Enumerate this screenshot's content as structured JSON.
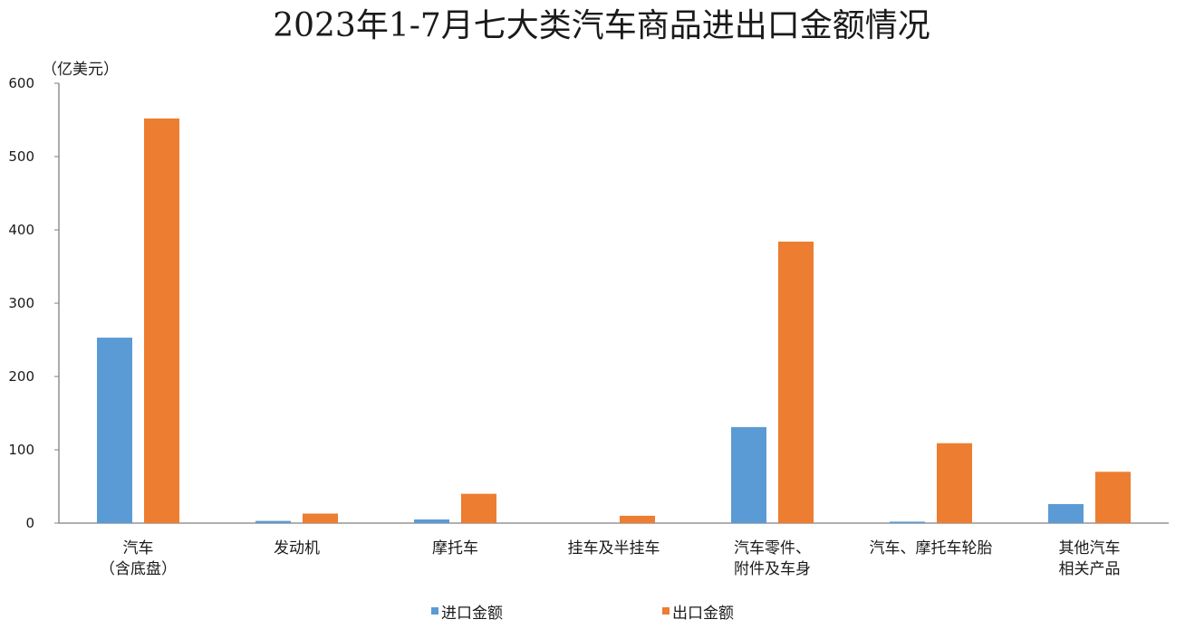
{
  "chart_data": {
    "type": "bar",
    "title": "2023年1-7月七大类汽车商品进出口金额情况",
    "unit_label": "（亿美元）",
    "ylim": [
      0,
      600
    ],
    "yticks": [
      "0",
      "100",
      "200",
      "300",
      "400",
      "500",
      "600"
    ],
    "categories": [
      [
        "汽车",
        "（含底盘）"
      ],
      [
        "发动机"
      ],
      [
        "摩托车"
      ],
      [
        "挂车及半挂车"
      ],
      [
        "汽车零件、",
        "附件及车身"
      ],
      [
        "汽车、摩托车轮胎"
      ],
      [
        "其他汽车",
        "相关产品"
      ]
    ],
    "series": [
      {
        "name": "进口金额",
        "color": "#5b9bd5",
        "values": [
          253,
          3,
          5,
          0,
          131,
          2,
          26
        ]
      },
      {
        "name": "出口金额",
        "color": "#ed7d31",
        "values": [
          552,
          13,
          40,
          10,
          384,
          109,
          70
        ]
      }
    ],
    "grid": false,
    "legend_position": "bottom"
  }
}
